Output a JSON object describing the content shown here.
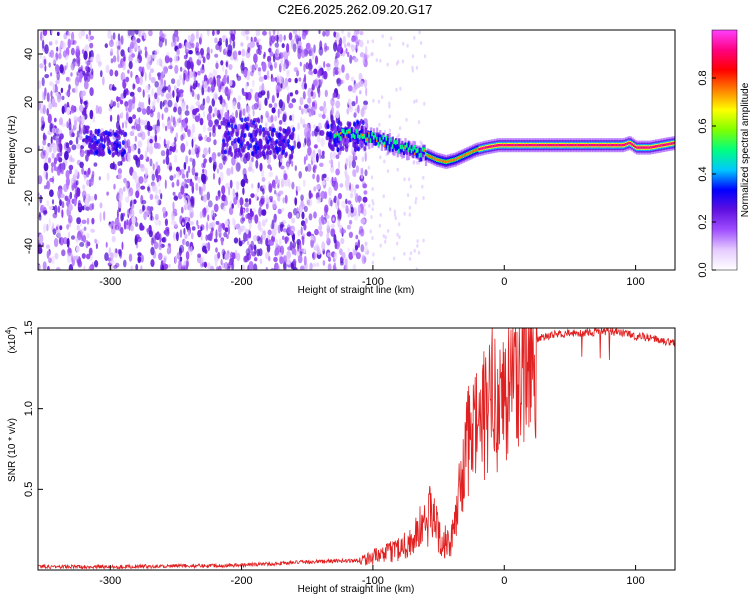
{
  "title": "C2E6.2025.262.09.20.G17",
  "chart_data": [
    {
      "type": "heatmap",
      "name": "spectrogram",
      "xlabel": "Height of straight line (km)",
      "ylabel": "Frequency (Hz)",
      "xlim": [
        -355,
        130
      ],
      "ylim": [
        -50,
        50
      ],
      "xticks": [
        -300,
        -200,
        -100,
        0,
        100
      ],
      "xtick_labels": [
        "-300",
        "-200",
        "-100",
        "0",
        "100"
      ],
      "yticks": [
        40,
        20,
        0,
        -20,
        -40
      ],
      "ytick_labels": [
        "40",
        "20",
        "0",
        "-20",
        "-40"
      ],
      "colorbar": {
        "label": "Normalized spectral amplitude",
        "range": [
          0,
          1
        ],
        "ticks": [
          0.0,
          0.2,
          0.4,
          0.6,
          0.8
        ],
        "tick_labels": [
          "0.0",
          "0.2",
          "0.4",
          "0.6",
          "0.8"
        ],
        "colors": [
          "#ffffff",
          "#e6ccff",
          "#a050ff",
          "#6010e0",
          "#0000ff",
          "#00c8ff",
          "#00ff80",
          "#80ff00",
          "#ffff00",
          "#ff8000",
          "#ff0000",
          "#ff0080",
          "#ff40ff"
        ]
      },
      "ridge": {
        "x": [
          -130,
          -115,
          -100,
          -90,
          -80,
          -70,
          -60,
          -52,
          -45,
          -38,
          -30,
          -22,
          -15,
          -5,
          0,
          10,
          30,
          50,
          70,
          90,
          95,
          100,
          110,
          120,
          130
        ],
        "y": [
          6,
          6,
          5,
          3,
          1,
          0,
          -2,
          -4,
          -5,
          -4,
          -2,
          0,
          1,
          2,
          2,
          2,
          2,
          2,
          2,
          2,
          3,
          1,
          1,
          2,
          3
        ]
      }
    },
    {
      "type": "line",
      "name": "snr",
      "xlabel": "Height of straight line (km)",
      "ylabel": "SNR (10 * v/v)",
      "multiplier_label": "(x10",
      "multiplier_exponent": "4",
      "multiplier_close": ")",
      "xlim": [
        -355,
        130
      ],
      "ylim": [
        0,
        1.5
      ],
      "xticks": [
        -300,
        -200,
        -100,
        0,
        100
      ],
      "xtick_labels": [
        "-300",
        "-200",
        "-100",
        "0",
        "100"
      ],
      "yticks": [
        0.5,
        1.0,
        1.5
      ],
      "ytick_labels": [
        "0.5",
        "1.0",
        "1.5"
      ],
      "color": "#e02020",
      "envelope": {
        "x": [
          -355,
          -300,
          -200,
          -150,
          -110,
          -90,
          -70,
          -60,
          -55,
          -48,
          -42,
          -38,
          -35,
          -30,
          -25,
          -20,
          -15,
          -10,
          -5,
          0,
          5,
          10,
          15,
          20,
          25,
          30,
          40,
          60,
          80,
          90,
          100,
          110,
          120,
          130
        ],
        "y": [
          0.02,
          0.02,
          0.03,
          0.05,
          0.06,
          0.1,
          0.18,
          0.3,
          0.35,
          0.2,
          0.15,
          0.25,
          0.45,
          0.7,
          0.85,
          0.9,
          0.95,
          1.05,
          1.1,
          1.05,
          1.15,
          1.25,
          1.3,
          1.35,
          1.42,
          1.45,
          1.46,
          1.47,
          1.48,
          1.47,
          1.45,
          1.44,
          1.42,
          1.41
        ]
      }
    }
  ]
}
